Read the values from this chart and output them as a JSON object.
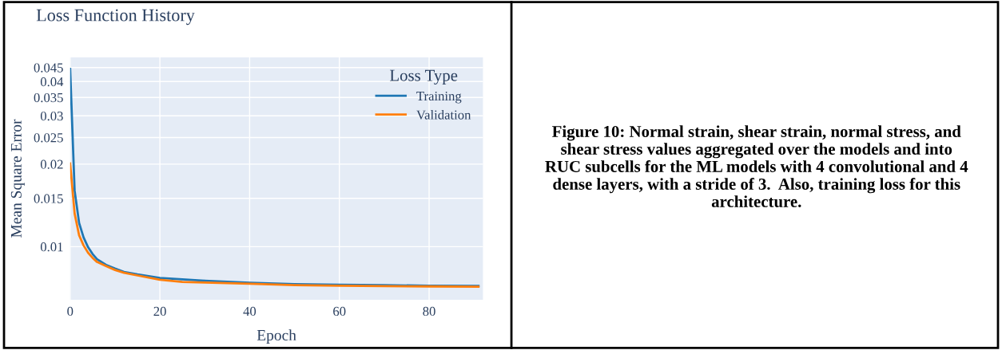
{
  "chart_data": {
    "type": "line",
    "title": "Loss Function History",
    "xlabel": "Epoch",
    "ylabel": "Mean Square Error",
    "legend_title": "Loss Type",
    "annotations": [
      "Figure 10: Normal strain, shear strain, normal stress, and shear stress values aggregated over the models and into RUC subcells for the ML models with 4 convolutional and 4 dense layers, with a stride of 3.  Also, training loss for this architecture."
    ],
    "x": [
      0,
      1,
      2,
      3,
      4,
      5,
      6,
      8,
      10,
      12,
      15,
      20,
      25,
      30,
      40,
      50,
      60,
      70,
      80,
      91
    ],
    "series": [
      {
        "name": "Training",
        "color": "#1f77b4",
        "values": [
          0.0445,
          0.016,
          0.0122,
          0.0108,
          0.00995,
          0.0094,
          0.009,
          0.00858,
          0.00832,
          0.00809,
          0.00792,
          0.00769,
          0.0076,
          0.00751,
          0.00739,
          0.0073,
          0.00726,
          0.00724,
          0.0072,
          0.00719
        ]
      },
      {
        "name": "Validation",
        "color": "#ff7f0e",
        "values": [
          0.0201,
          0.0132,
          0.011,
          0.0101,
          0.0095,
          0.0091,
          0.00879,
          0.00849,
          0.00822,
          0.00803,
          0.00785,
          0.00757,
          0.00744,
          0.0074,
          0.00732,
          0.00724,
          0.0072,
          0.00718,
          0.00716,
          0.00714
        ]
      }
    ],
    "xlim": [
      0,
      92
    ],
    "xticks": [
      0,
      20,
      40,
      60,
      80
    ],
    "ylim": [
      0.0064,
      0.049
    ],
    "yticks": [
      0.01,
      0.015,
      0.02,
      0.025,
      0.03,
      0.035,
      0.04,
      0.045
    ],
    "log": "y",
    "grid": true,
    "legend": "top right",
    "marker": "none",
    "line_style": "solid"
  }
}
